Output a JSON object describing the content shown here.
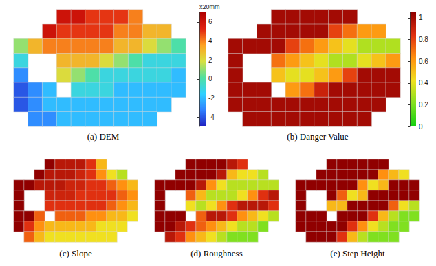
{
  "chart_data": [
    {
      "type": "heatmap",
      "title": "(a) DEM",
      "cells": [
        [
          null,
          null,
          null,
          6,
          6,
          5,
          5,
          5,
          4,
          null,
          null,
          null
        ],
        [
          null,
          null,
          6,
          5,
          5,
          5,
          5,
          4,
          4,
          3,
          3,
          null
        ],
        [
          1,
          3,
          4,
          4,
          4,
          4,
          4,
          3,
          3,
          2,
          1,
          0
        ],
        [
          -1,
          null,
          null,
          3,
          3,
          3,
          2,
          1,
          0,
          -1,
          -1,
          -1
        ],
        [
          -3,
          null,
          null,
          2,
          1,
          0,
          -1,
          -1,
          -1,
          -1,
          -1,
          -2
        ],
        [
          -4,
          -3,
          -2,
          null,
          -1,
          -1,
          -1,
          -2,
          -2,
          -2,
          -2,
          -2
        ],
        [
          -4,
          -3,
          -2,
          -2,
          -2,
          -2,
          -2,
          -2,
          -2,
          -2,
          -2,
          null
        ],
        [
          null,
          -3,
          -3,
          -2,
          -2,
          -2,
          -2,
          -2,
          -2,
          -2,
          null,
          null
        ]
      ],
      "colorbar": {
        "range": [
          -5,
          7
        ],
        "ticks": [
          -4,
          -2,
          0,
          2,
          4,
          6
        ],
        "label": "x20mm"
      }
    },
    {
      "type": "heatmap",
      "title": "(b) Danger Value",
      "cells": [
        [
          null,
          null,
          null,
          1,
          1,
          1,
          1,
          1,
          1,
          null,
          null,
          null
        ],
        [
          null,
          null,
          1,
          1,
          1,
          1,
          1,
          0.8,
          0.7,
          0.6,
          0.6,
          null
        ],
        [
          1,
          1,
          1,
          1,
          0.8,
          0.7,
          0.6,
          0.5,
          0.4,
          0.3,
          0.3,
          0.3
        ],
        [
          1,
          null,
          null,
          0.7,
          0.6,
          0.5,
          0.4,
          0.3,
          0.3,
          0.4,
          0.5,
          0.6
        ],
        [
          1,
          null,
          null,
          0.5,
          0.4,
          0.4,
          0.5,
          0.6,
          0.8,
          1,
          1,
          1
        ],
        [
          1,
          1,
          1,
          null,
          0.6,
          0.7,
          0.9,
          1,
          1,
          1,
          1,
          1
        ],
        [
          1,
          1,
          1,
          1,
          1,
          1,
          1,
          1,
          1,
          1,
          1,
          null
        ],
        [
          null,
          1,
          1,
          1,
          1,
          1,
          1,
          1,
          1,
          1,
          null,
          null
        ]
      ],
      "colorbar": {
        "range": [
          0,
          1.05
        ],
        "ticks": [
          0,
          0.2,
          0.4,
          0.6,
          0.8,
          1
        ]
      }
    },
    {
      "type": "heatmap",
      "title": "(c) Slope",
      "cells": [
        [
          null,
          null,
          null,
          1,
          0.9,
          0.9,
          0.9,
          0.8,
          0.5,
          null,
          null,
          null
        ],
        [
          null,
          null,
          1,
          0.9,
          0.9,
          0.9,
          0.85,
          0.8,
          0.6,
          0.4,
          0.3,
          null
        ],
        [
          1,
          1,
          0.9,
          0.9,
          0.9,
          0.85,
          0.85,
          0.8,
          0.8,
          0.7,
          0.6,
          0.5
        ],
        [
          1,
          null,
          null,
          0.85,
          0.85,
          0.85,
          0.8,
          0.8,
          0.8,
          0.8,
          0.7,
          0.6
        ],
        [
          1,
          null,
          null,
          0.8,
          0.8,
          0.8,
          0.8,
          0.8,
          0.8,
          0.7,
          0.6,
          0.5
        ],
        [
          1,
          1,
          0.7,
          null,
          0.7,
          0.7,
          0.7,
          0.6,
          0.6,
          0.5,
          0.5,
          0.4
        ],
        [
          1,
          0.8,
          0.6,
          0.5,
          0.5,
          0.5,
          0.5,
          0.5,
          0.4,
          0.4,
          0.4,
          null
        ],
        [
          null,
          0.7,
          0.5,
          0.4,
          0.4,
          0.4,
          0.4,
          0.4,
          0.4,
          0.4,
          null,
          null
        ]
      ],
      "value_range": [
        0,
        1
      ]
    },
    {
      "type": "heatmap",
      "title": "(d) Roughness",
      "cells": [
        [
          null,
          null,
          null,
          1,
          1,
          1,
          1,
          0.9,
          0.8,
          null,
          null,
          null
        ],
        [
          null,
          null,
          1,
          1,
          1,
          1,
          0.9,
          0.5,
          0.4,
          0.4,
          0.3,
          null
        ],
        [
          1,
          1,
          1,
          1,
          0.9,
          0.6,
          0.4,
          0.3,
          0.3,
          0.3,
          0.3,
          0.3
        ],
        [
          1,
          null,
          null,
          0.7,
          0.5,
          0.3,
          0.3,
          0.3,
          0.4,
          0.6,
          0.8,
          0.9
        ],
        [
          1,
          null,
          null,
          0.4,
          0.3,
          0.4,
          0.6,
          0.8,
          0.9,
          0.9,
          0.9,
          0.8
        ],
        [
          1,
          1,
          1,
          null,
          0.7,
          0.9,
          0.9,
          0.8,
          0.6,
          0.5,
          0.4,
          0.3
        ],
        [
          1,
          1,
          0.9,
          0.8,
          0.7,
          0.6,
          0.5,
          0.4,
          0.3,
          0.3,
          0.2,
          null
        ],
        [
          null,
          0.9,
          0.8,
          0.6,
          0.5,
          0.4,
          0.3,
          0.2,
          0.2,
          0.2,
          null,
          null
        ]
      ],
      "value_range": [
        0,
        1
      ]
    },
    {
      "type": "heatmap",
      "title": "(e) Step Height",
      "cells": [
        [
          null,
          null,
          null,
          1,
          1,
          1,
          1,
          1,
          1,
          null,
          null,
          null
        ],
        [
          null,
          null,
          1,
          1,
          1,
          1,
          1,
          1,
          0.6,
          0.5,
          0.4,
          null
        ],
        [
          1,
          1,
          1,
          1,
          1,
          1,
          0.6,
          0.4,
          0.5,
          1,
          1,
          1
        ],
        [
          1,
          null,
          null,
          1,
          0.7,
          0.4,
          0.5,
          1,
          1,
          1,
          1,
          1
        ],
        [
          1,
          null,
          null,
          0.5,
          0.5,
          1,
          1,
          1,
          1,
          0.7,
          0.4,
          0.3
        ],
        [
          1,
          1,
          1,
          null,
          1,
          1,
          1,
          0.8,
          0.5,
          0.3,
          0.2,
          0.2
        ],
        [
          1,
          1,
          1,
          1,
          1,
          0.8,
          0.6,
          0.4,
          0.3,
          0.2,
          0.2,
          null
        ],
        [
          null,
          1,
          1,
          1,
          0.8,
          0.5,
          0.3,
          0.2,
          0.2,
          0.2,
          null,
          null
        ]
      ],
      "value_range": [
        0,
        1
      ]
    }
  ]
}
